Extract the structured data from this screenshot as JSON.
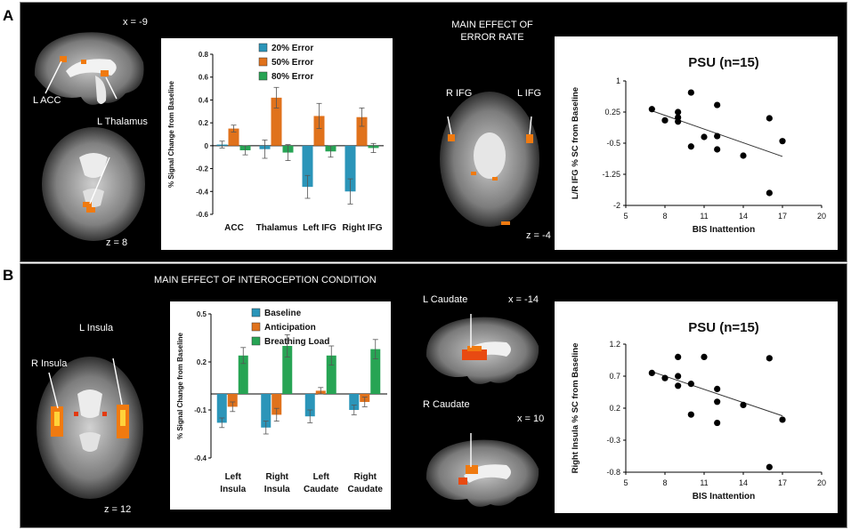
{
  "panels": {
    "a": {
      "letter": "A",
      "coords": {
        "sag": "x = -9",
        "ax": "z = 8",
        "mid": "z = -4"
      },
      "labels": {
        "acc": "L ACC",
        "thal": "L Thalamus",
        "rifg": "R IFG",
        "lifg": "L IFG"
      },
      "effect_title_1": "MAIN EFFECT OF",
      "effect_title_2": "ERROR RATE"
    },
    "b": {
      "letter": "B",
      "effect_title": "MAIN EFFECT OF INTEROCEPTION CONDITION",
      "coords": {
        "ax": "z = 12",
        "sag1": "x = -14",
        "sag2": "x = 10"
      },
      "labels": {
        "linsula": "L Insula",
        "rinsula": "R Insula",
        "lcaud": "L Caudate",
        "rcaud": "R Caudate"
      }
    }
  },
  "colors": {
    "teal": "#2b95b9",
    "orange": "#e0721c",
    "green": "#27a454",
    "activation": "#f07a10"
  },
  "chart_data": [
    {
      "type": "bar",
      "id": "bar_a",
      "ylabel": "% Signal Change from Baseline",
      "categories": [
        "ACC",
        "Thalamus",
        "Left IFG",
        "Right IFG"
      ],
      "ylim": [
        -0.6,
        0.8
      ],
      "yticks": [
        0.8,
        0.6,
        0.4,
        0.2,
        0,
        -0.2,
        -0.4,
        -0.6
      ],
      "series": [
        {
          "name": "20% Error",
          "values": [
            0.01,
            -0.03,
            -0.36,
            -0.4
          ],
          "errors": [
            0.03,
            0.08,
            0.1,
            0.11
          ]
        },
        {
          "name": "50% Error",
          "values": [
            0.15,
            0.42,
            0.26,
            0.25
          ],
          "errors": [
            0.03,
            0.09,
            0.11,
            0.08
          ]
        },
        {
          "name": "80% Error",
          "values": [
            -0.04,
            -0.06,
            -0.05,
            -0.02
          ],
          "errors": [
            0.04,
            0.07,
            0.05,
            0.04
          ]
        }
      ]
    },
    {
      "type": "scatter",
      "id": "scatter_a",
      "title": "PSU (n=15)",
      "xlabel": "BIS Inattention",
      "ylabel": "L/R IFG % SC from Baseline",
      "xlim": [
        5,
        20
      ],
      "ylim": [
        -2,
        1
      ],
      "xticks": [
        5,
        8,
        11,
        14,
        17,
        20
      ],
      "yticks": [
        1,
        0.25,
        -0.5,
        -1.25,
        -2
      ],
      "ytick_labels": [
        "1",
        "0.25",
        "-0.5",
        "-1.25",
        "-2"
      ],
      "points": [
        [
          7,
          0.32
        ],
        [
          8,
          0.05
        ],
        [
          9,
          0.25
        ],
        [
          9,
          0.12
        ],
        [
          9,
          0.02
        ],
        [
          10,
          0.72
        ],
        [
          10,
          -0.58
        ],
        [
          11,
          -0.35
        ],
        [
          12,
          0.42
        ],
        [
          12,
          -0.33
        ],
        [
          12,
          -0.65
        ],
        [
          14,
          -0.8
        ],
        [
          16,
          0.1
        ],
        [
          16,
          -1.7
        ],
        [
          17,
          -0.45
        ]
      ],
      "trendline": [
        [
          7,
          0.28
        ],
        [
          17,
          -0.82
        ]
      ]
    },
    {
      "type": "bar",
      "id": "bar_b",
      "ylabel": "% Signal Change from Baseline",
      "categories": [
        "Left Insula",
        "Right Insula",
        "Left Caudate",
        "Right Caudate"
      ],
      "category_lines": [
        [
          "Left",
          "Insula"
        ],
        [
          "Right",
          "Insula"
        ],
        [
          "Left",
          "Caudate"
        ],
        [
          "Right",
          "Caudate"
        ]
      ],
      "ylim": [
        -0.4,
        0.5
      ],
      "yticks": [
        0.5,
        0.2,
        -0.1,
        -0.4
      ],
      "ytick_labels": [
        "0.5",
        "0.2",
        "-0.1",
        "-0.4"
      ],
      "series": [
        {
          "name": "Baseline",
          "values": [
            -0.18,
            -0.21,
            -0.14,
            -0.1
          ],
          "errors": [
            0.03,
            0.04,
            0.04,
            0.03
          ]
        },
        {
          "name": "Anticipation",
          "values": [
            -0.08,
            -0.13,
            0.02,
            -0.05
          ],
          "errors": [
            0.03,
            0.04,
            0.02,
            0.03
          ]
        },
        {
          "name": "Breathing Load",
          "values": [
            0.24,
            0.3,
            0.24,
            0.28
          ],
          "errors": [
            0.05,
            0.07,
            0.06,
            0.06
          ]
        }
      ]
    },
    {
      "type": "scatter",
      "id": "scatter_b",
      "title": "PSU (n=15)",
      "xlabel": "BIS Inattention",
      "ylabel": "Right Insula % SC from Baseline",
      "xlim": [
        5,
        20
      ],
      "ylim": [
        -0.8,
        1.2
      ],
      "xticks": [
        5,
        8,
        11,
        14,
        17,
        20
      ],
      "yticks": [
        1.2,
        0.7,
        0.2,
        -0.3,
        -0.8
      ],
      "ytick_labels": [
        "1.2",
        "0.7",
        "0.2",
        "-0.3",
        "-0.8"
      ],
      "points": [
        [
          7,
          0.75
        ],
        [
          8,
          0.67
        ],
        [
          9,
          1.0
        ],
        [
          9,
          0.7
        ],
        [
          9,
          0.55
        ],
        [
          10,
          0.58
        ],
        [
          10,
          0.1
        ],
        [
          11,
          1.0
        ],
        [
          12,
          0.5
        ],
        [
          12,
          0.3
        ],
        [
          12,
          -0.03
        ],
        [
          14,
          0.25
        ],
        [
          16,
          0.98
        ],
        [
          16,
          -0.72
        ],
        [
          17,
          0.02
        ]
      ],
      "trendline": [
        [
          7,
          0.77
        ],
        [
          17,
          0.08
        ]
      ]
    }
  ]
}
